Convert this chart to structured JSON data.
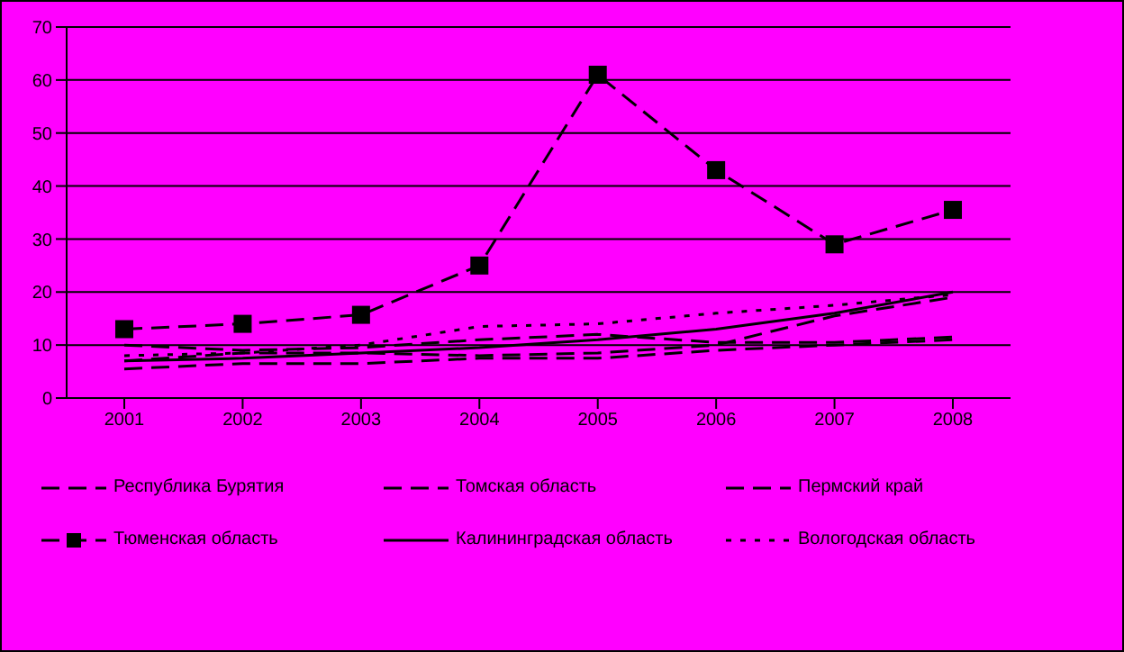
{
  "chart_data": {
    "type": "line",
    "categories": [
      "2001",
      "2002",
      "2003",
      "2004",
      "2005",
      "2006",
      "2007",
      "2008"
    ],
    "series": [
      {
        "name": "Республика Бурятия",
        "color": "#000000",
        "line_style": "dashed",
        "values": [
          5.5,
          6.5,
          6.5,
          7.5,
          7.5,
          9,
          10,
          11
        ]
      },
      {
        "name": "Томская область",
        "color": "#000000",
        "line_style": "dashed",
        "values": [
          10,
          9,
          9.5,
          11,
          12,
          10.5,
          10.5,
          11.5
        ]
      },
      {
        "name": "Пермский край",
        "color": "#000000",
        "line_style": "dashed",
        "values": [
          7,
          8.5,
          8.5,
          8,
          8.5,
          10,
          15.5,
          19
        ]
      },
      {
        "name": "Тюменская область",
        "color": "#000000",
        "line_style": "dashed",
        "marker": "square",
        "values": [
          13,
          14,
          15.7,
          25,
          61,
          43,
          29,
          35.5
        ]
      },
      {
        "name": "Калининградская область",
        "color": "#000000",
        "line_style": "solid",
        "values": [
          7,
          7.5,
          8.5,
          9.5,
          11,
          13,
          16,
          20
        ]
      },
      {
        "name": "Вологодская область",
        "color": "#000000",
        "line_style": "dotted",
        "values": [
          8,
          8.5,
          10,
          13.5,
          14,
          16,
          17.5,
          19.5
        ]
      }
    ],
    "ylim": [
      0,
      70
    ],
    "yticks": [
      0,
      10,
      20,
      30,
      40,
      50,
      60,
      70
    ],
    "grid": "y",
    "legend": "bottom",
    "marker": "none"
  }
}
